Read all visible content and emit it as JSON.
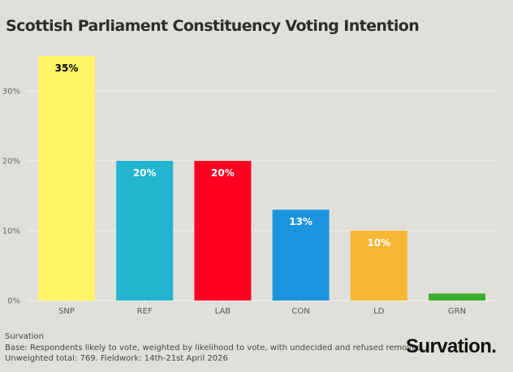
{
  "chart_data": {
    "type": "bar",
    "title": "Scottish Parliament Constituency Voting Intention",
    "categories": [
      "SNP",
      "REF",
      "LAB",
      "CON",
      "LD",
      "GRN"
    ],
    "values": [
      35,
      20,
      20,
      13,
      10,
      1
    ],
    "data_labels": [
      "35%",
      "20%",
      "20%",
      "13%",
      "10%",
      ""
    ],
    "colors": [
      "#fff566",
      "#21b5cf",
      "#ff0022",
      "#1a95dd",
      "#f7b733",
      "#3aae2a"
    ],
    "label_colors": [
      "#000000",
      "#ffffff",
      "#ffffff",
      "#ffffff",
      "#ffffff",
      "#ffffff"
    ],
    "yticks": [
      0,
      10,
      20,
      30
    ],
    "ytick_labels": [
      "0%",
      "10%",
      "20%",
      "30%"
    ],
    "ylim": [
      0,
      35
    ],
    "xlabel": "",
    "ylabel": "",
    "grid": true,
    "legend": "none"
  },
  "footer": {
    "source": "Survation",
    "base": "Base: Respondents likely to vote, weighted by likelihood to vote, with undecided and refused removed.",
    "fieldwork": "Unweighted total: 769. Fieldwork: 14th-21st April 2026"
  },
  "logo": "Survation."
}
